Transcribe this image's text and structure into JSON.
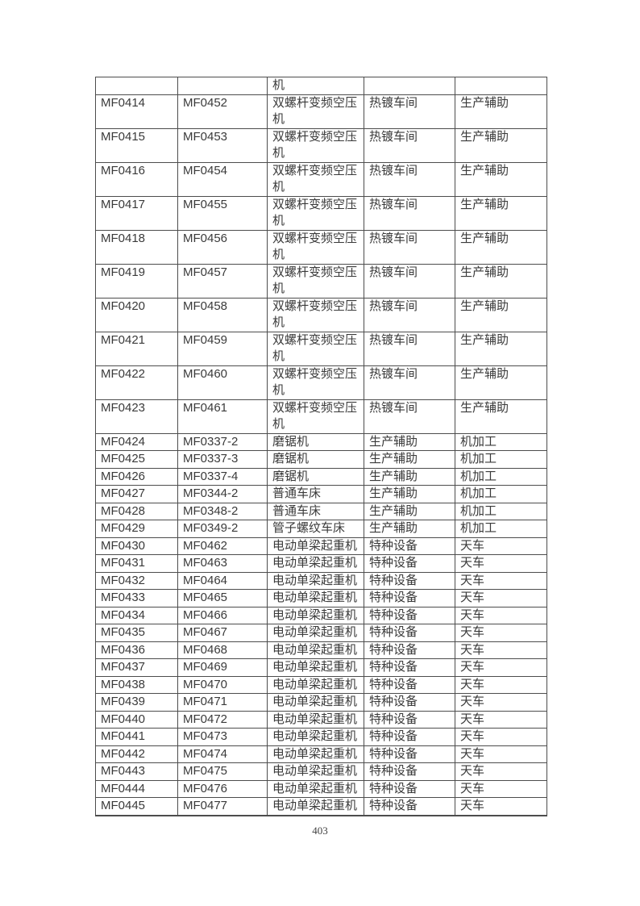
{
  "page": {
    "number": "403"
  },
  "table": {
    "columns": [
      "code1",
      "code2",
      "equipment_name",
      "department",
      "category"
    ],
    "rows": [
      [
        "",
        "",
        "机",
        "",
        ""
      ],
      [
        "MF0414",
        "MF0452",
        "双螺杆变频空压机",
        "热镀车间",
        "生产辅助"
      ],
      [
        "MF0415",
        "MF0453",
        "双螺杆变频空压机",
        "热镀车间",
        "生产辅助"
      ],
      [
        "MF0416",
        "MF0454",
        "双螺杆变频空压机",
        "热镀车间",
        "生产辅助"
      ],
      [
        "MF0417",
        "MF0455",
        "双螺杆变频空压机",
        "热镀车间",
        "生产辅助"
      ],
      [
        "MF0418",
        "MF0456",
        "双螺杆变频空压机",
        "热镀车间",
        "生产辅助"
      ],
      [
        "MF0419",
        "MF0457",
        "双螺杆变频空压机",
        "热镀车间",
        "生产辅助"
      ],
      [
        "MF0420",
        "MF0458",
        "双螺杆变频空压机",
        "热镀车间",
        "生产辅助"
      ],
      [
        "MF0421",
        "MF0459",
        "双螺杆变频空压机",
        "热镀车间",
        "生产辅助"
      ],
      [
        "MF0422",
        "MF0460",
        "双螺杆变频空压机",
        "热镀车间",
        "生产辅助"
      ],
      [
        "MF0423",
        "MF0461",
        "双螺杆变频空压机",
        "热镀车间",
        "生产辅助"
      ],
      [
        "MF0424",
        "MF0337-2",
        "磨锯机",
        "生产辅助",
        "机加工"
      ],
      [
        "MF0425",
        "MF0337-3",
        "磨锯机",
        "生产辅助",
        "机加工"
      ],
      [
        "MF0426",
        "MF0337-4",
        "磨锯机",
        "生产辅助",
        "机加工"
      ],
      [
        "MF0427",
        "MF0344-2",
        "普通车床",
        "生产辅助",
        "机加工"
      ],
      [
        "MF0428",
        "MF0348-2",
        "普通车床",
        "生产辅助",
        "机加工"
      ],
      [
        "MF0429",
        "MF0349-2",
        "管子螺纹车床",
        "生产辅助",
        "机加工"
      ],
      [
        "MF0430",
        "MF0462",
        "电动单梁起重机",
        "特种设备",
        "天车"
      ],
      [
        "MF0431",
        "MF0463",
        "电动单梁起重机",
        "特种设备",
        "天车"
      ],
      [
        "MF0432",
        "MF0464",
        "电动单梁起重机",
        "特种设备",
        "天车"
      ],
      [
        "MF0433",
        "MF0465",
        "电动单梁起重机",
        "特种设备",
        "天车"
      ],
      [
        "MF0434",
        "MF0466",
        "电动单梁起重机",
        "特种设备",
        "天车"
      ],
      [
        "MF0435",
        "MF0467",
        "电动单梁起重机",
        "特种设备",
        "天车"
      ],
      [
        "MF0436",
        "MF0468",
        "电动单梁起重机",
        "特种设备",
        "天车"
      ],
      [
        "MF0437",
        "MF0469",
        "电动单梁起重机",
        "特种设备",
        "天车"
      ],
      [
        "MF0438",
        "MF0470",
        "电动单梁起重机",
        "特种设备",
        "天车"
      ],
      [
        "MF0439",
        "MF0471",
        "电动单梁起重机",
        "特种设备",
        "天车"
      ],
      [
        "MF0440",
        "MF0472",
        "电动单梁起重机",
        "特种设备",
        "天车"
      ],
      [
        "MF0441",
        "MF0473",
        "电动单梁起重机",
        "特种设备",
        "天车"
      ],
      [
        "MF0442",
        "MF0474",
        "电动单梁起重机",
        "特种设备",
        "天车"
      ],
      [
        "MF0443",
        "MF0475",
        "电动单梁起重机",
        "特种设备",
        "天车"
      ],
      [
        "MF0444",
        "MF0476",
        "电动单梁起重机",
        "特种设备",
        "天车"
      ],
      [
        "MF0445",
        "MF0477",
        "电动单梁起重机",
        "特种设备",
        "天车"
      ]
    ]
  }
}
